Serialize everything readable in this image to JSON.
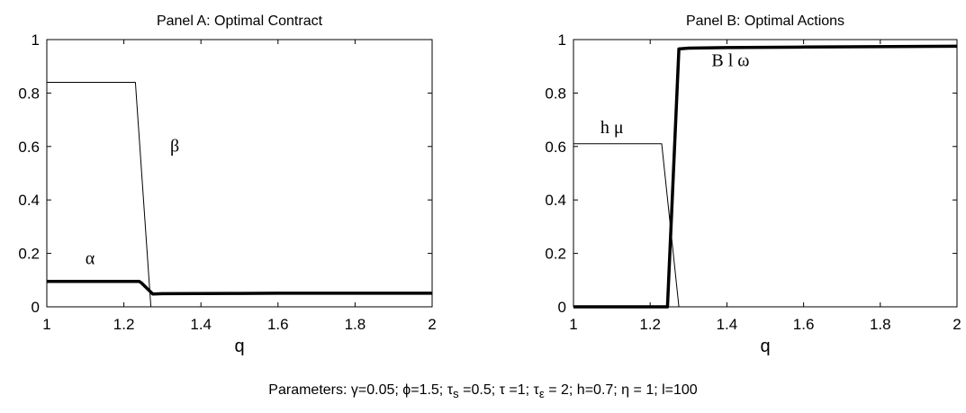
{
  "chart_data": [
    {
      "type": "line",
      "title": "Panel A: Optimal Contract",
      "xlabel": "q",
      "ylabel": "",
      "xlim": [
        1,
        2
      ],
      "ylim": [
        0,
        1
      ],
      "xticks": [
        "1",
        "1.2",
        "1.4",
        "1.6",
        "1.8",
        "2"
      ],
      "yticks": [
        "0",
        "0.2",
        "0.4",
        "0.6",
        "0.8",
        "1"
      ],
      "grid": false,
      "series": [
        {
          "name": "α",
          "weight": "thick",
          "x": [
            1.0,
            1.24,
            1.245,
            1.275,
            1.3,
            1.5,
            1.6,
            2.0
          ],
          "y": [
            0.095,
            0.095,
            0.09,
            0.048,
            0.049,
            0.05,
            0.051,
            0.051
          ]
        },
        {
          "name": "β",
          "weight": "thin",
          "x": [
            1.0,
            1.23,
            1.27,
            1.275,
            2.0
          ],
          "y": [
            0.84,
            0.84,
            0.0,
            0.0,
            0.0
          ]
        }
      ],
      "annotations": [
        {
          "text": "α",
          "x": 1.1,
          "y": 0.16
        },
        {
          "text": "β",
          "x": 1.32,
          "y": 0.58
        }
      ]
    },
    {
      "type": "line",
      "title": "Panel B: Optimal Actions",
      "xlabel": "q",
      "ylabel": "",
      "xlim": [
        1,
        2
      ],
      "ylim": [
        0,
        1
      ],
      "xticks": [
        "1",
        "1.2",
        "1.4",
        "1.6",
        "1.8",
        "2"
      ],
      "yticks": [
        "0",
        "0.2",
        "0.4",
        "0.6",
        "0.8",
        "1"
      ],
      "grid": false,
      "series": [
        {
          "name": "B l ω",
          "weight": "thick",
          "x": [
            1.0,
            1.245,
            1.275,
            1.3,
            1.4,
            1.6,
            2.0
          ],
          "y": [
            0.0,
            0.0,
            0.965,
            0.968,
            0.97,
            0.972,
            0.975
          ]
        },
        {
          "name": "h μ",
          "weight": "thin",
          "x": [
            1.0,
            1.23,
            1.275,
            1.28,
            2.0
          ],
          "y": [
            0.61,
            0.61,
            0.0,
            0.0,
            0.0
          ]
        }
      ],
      "annotations": [
        {
          "text": "h μ",
          "x": 1.07,
          "y": 0.65
        },
        {
          "text": "B l ω",
          "x": 1.36,
          "y": 0.9
        }
      ]
    }
  ],
  "footer": {
    "lead": "Parameters:  γ=0.05; ϕ=1.5; τ",
    "tau_s_sub": "s",
    "part2": " =0.5; τ =1; τ",
    "tau_e_sub": "ε",
    "part3": " = 2; h=0.7;  η = 1; l=100"
  },
  "colors": {
    "line": "#000000",
    "axis": "#000000",
    "background": "#ffffff"
  }
}
